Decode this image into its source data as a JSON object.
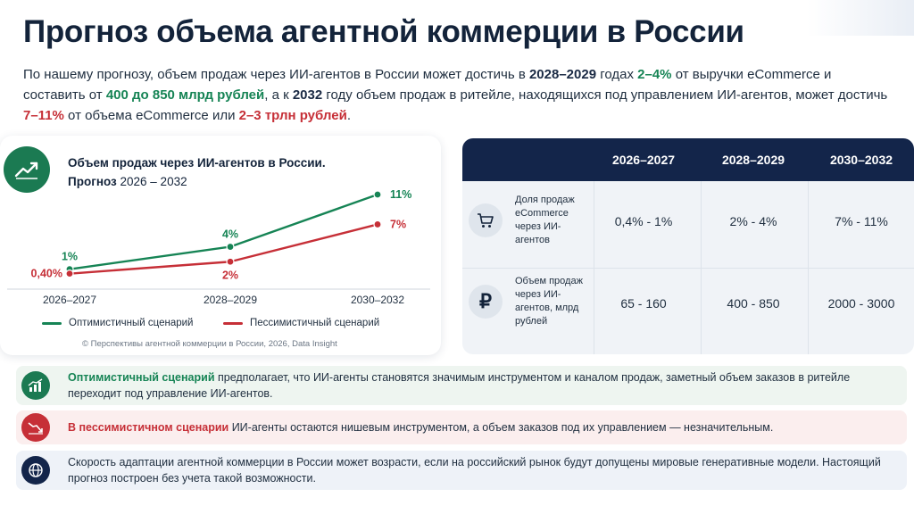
{
  "title": "Прогноз объема агентной коммерции в России",
  "intro": {
    "p1": "По нашему прогнозу, объем продаж через ИИ-агентов в России может достичь в ",
    "h1": "2028–2029",
    "p2": " годах ",
    "h2": "2–4%",
    "p3": " от выручки eCommerce и составить от ",
    "h3": "400 до 850 млрд рублей",
    "p4": ", а к ",
    "h4": "2032",
    "p5": " году объем продаж в ритейле, находящихся под управлением ИИ-агентов, может достичь ",
    "h5": "7–11%",
    "p6": " от объема eCommerce или ",
    "h6": "2–3 трлн рублей",
    "p7": "."
  },
  "chart_card": {
    "icon": "trending-up-icon",
    "title": "Объем продаж через ИИ-агентов в России.",
    "subtitle_bold": "Прогноз",
    "subtitle_range": " 2026 – 2032",
    "legend_optimistic": "Оптимистичный сценарий",
    "legend_pessimistic": "Пессимистичный сценарий",
    "source": "© Перспективы агентной коммерции в России, 2026, Data Insight"
  },
  "chart_data": {
    "type": "line",
    "title": "Объем продаж через ИИ-агентов в России. Прогноз 2026 – 2032",
    "categories": [
      "2026–2027",
      "2028–2029",
      "2030–2032"
    ],
    "series": [
      {
        "name": "Оптимистичный сценарий",
        "values": [
          1,
          4,
          11
        ],
        "labels": [
          "1%",
          "4%",
          "11%"
        ],
        "color": "#168455"
      },
      {
        "name": "Пессимистичный сценарий",
        "values": [
          0.4,
          2,
          7
        ],
        "labels": [
          "0,40%",
          "2%",
          "7%"
        ],
        "color": "#c62f37"
      }
    ],
    "ylim": [
      0,
      11
    ],
    "grid": false,
    "legend": "bottom"
  },
  "table": {
    "headers": [
      "2026–2027",
      "2028–2029",
      "2030–2032"
    ],
    "rows": [
      {
        "icon": "shopping-cart-icon",
        "label": "Доля продаж eCommerce через ИИ-агентов",
        "values": [
          "0,4% - 1%",
          "2% - 4%",
          "7% - 11%"
        ]
      },
      {
        "icon": "ruble-icon",
        "label": "Объем продаж через ИИ-агентов, млрд рублей",
        "values": [
          "65 - 160",
          "400 - 850",
          "2000 - 3000"
        ]
      }
    ]
  },
  "notes": [
    {
      "icon": "growth-chart-icon",
      "bg": "#eef5f0",
      "iconbg": "#1b7a52",
      "highlight": "Оптимистичный сценарий",
      "text": " предполагает, что ИИ-агенты становятся значимым инструментом и каналом продаж, заметный объем заказов в ритейле переходит под управление ИИ-агентов."
    },
    {
      "icon": "decline-chart-icon",
      "bg": "#fbeeee",
      "iconbg": "#c62f37",
      "highlight": "В пессимистичном сценарии",
      "text": " ИИ-агенты остаются нишевым инструментом, а объем заказов под их управлением — незначительным."
    },
    {
      "icon": "globe-icon",
      "bg": "#eef2f8",
      "iconbg": "#13254a",
      "highlight": "",
      "text": "Скорость адаптации агентной коммерции в России может возрасти, если на российский рынок будут допущены мировые генеративные модели. Настоящий прогноз построен без учета такой возможности."
    }
  ],
  "colors": {
    "green": "#168455",
    "red": "#c62f37",
    "navy": "#13254a"
  }
}
